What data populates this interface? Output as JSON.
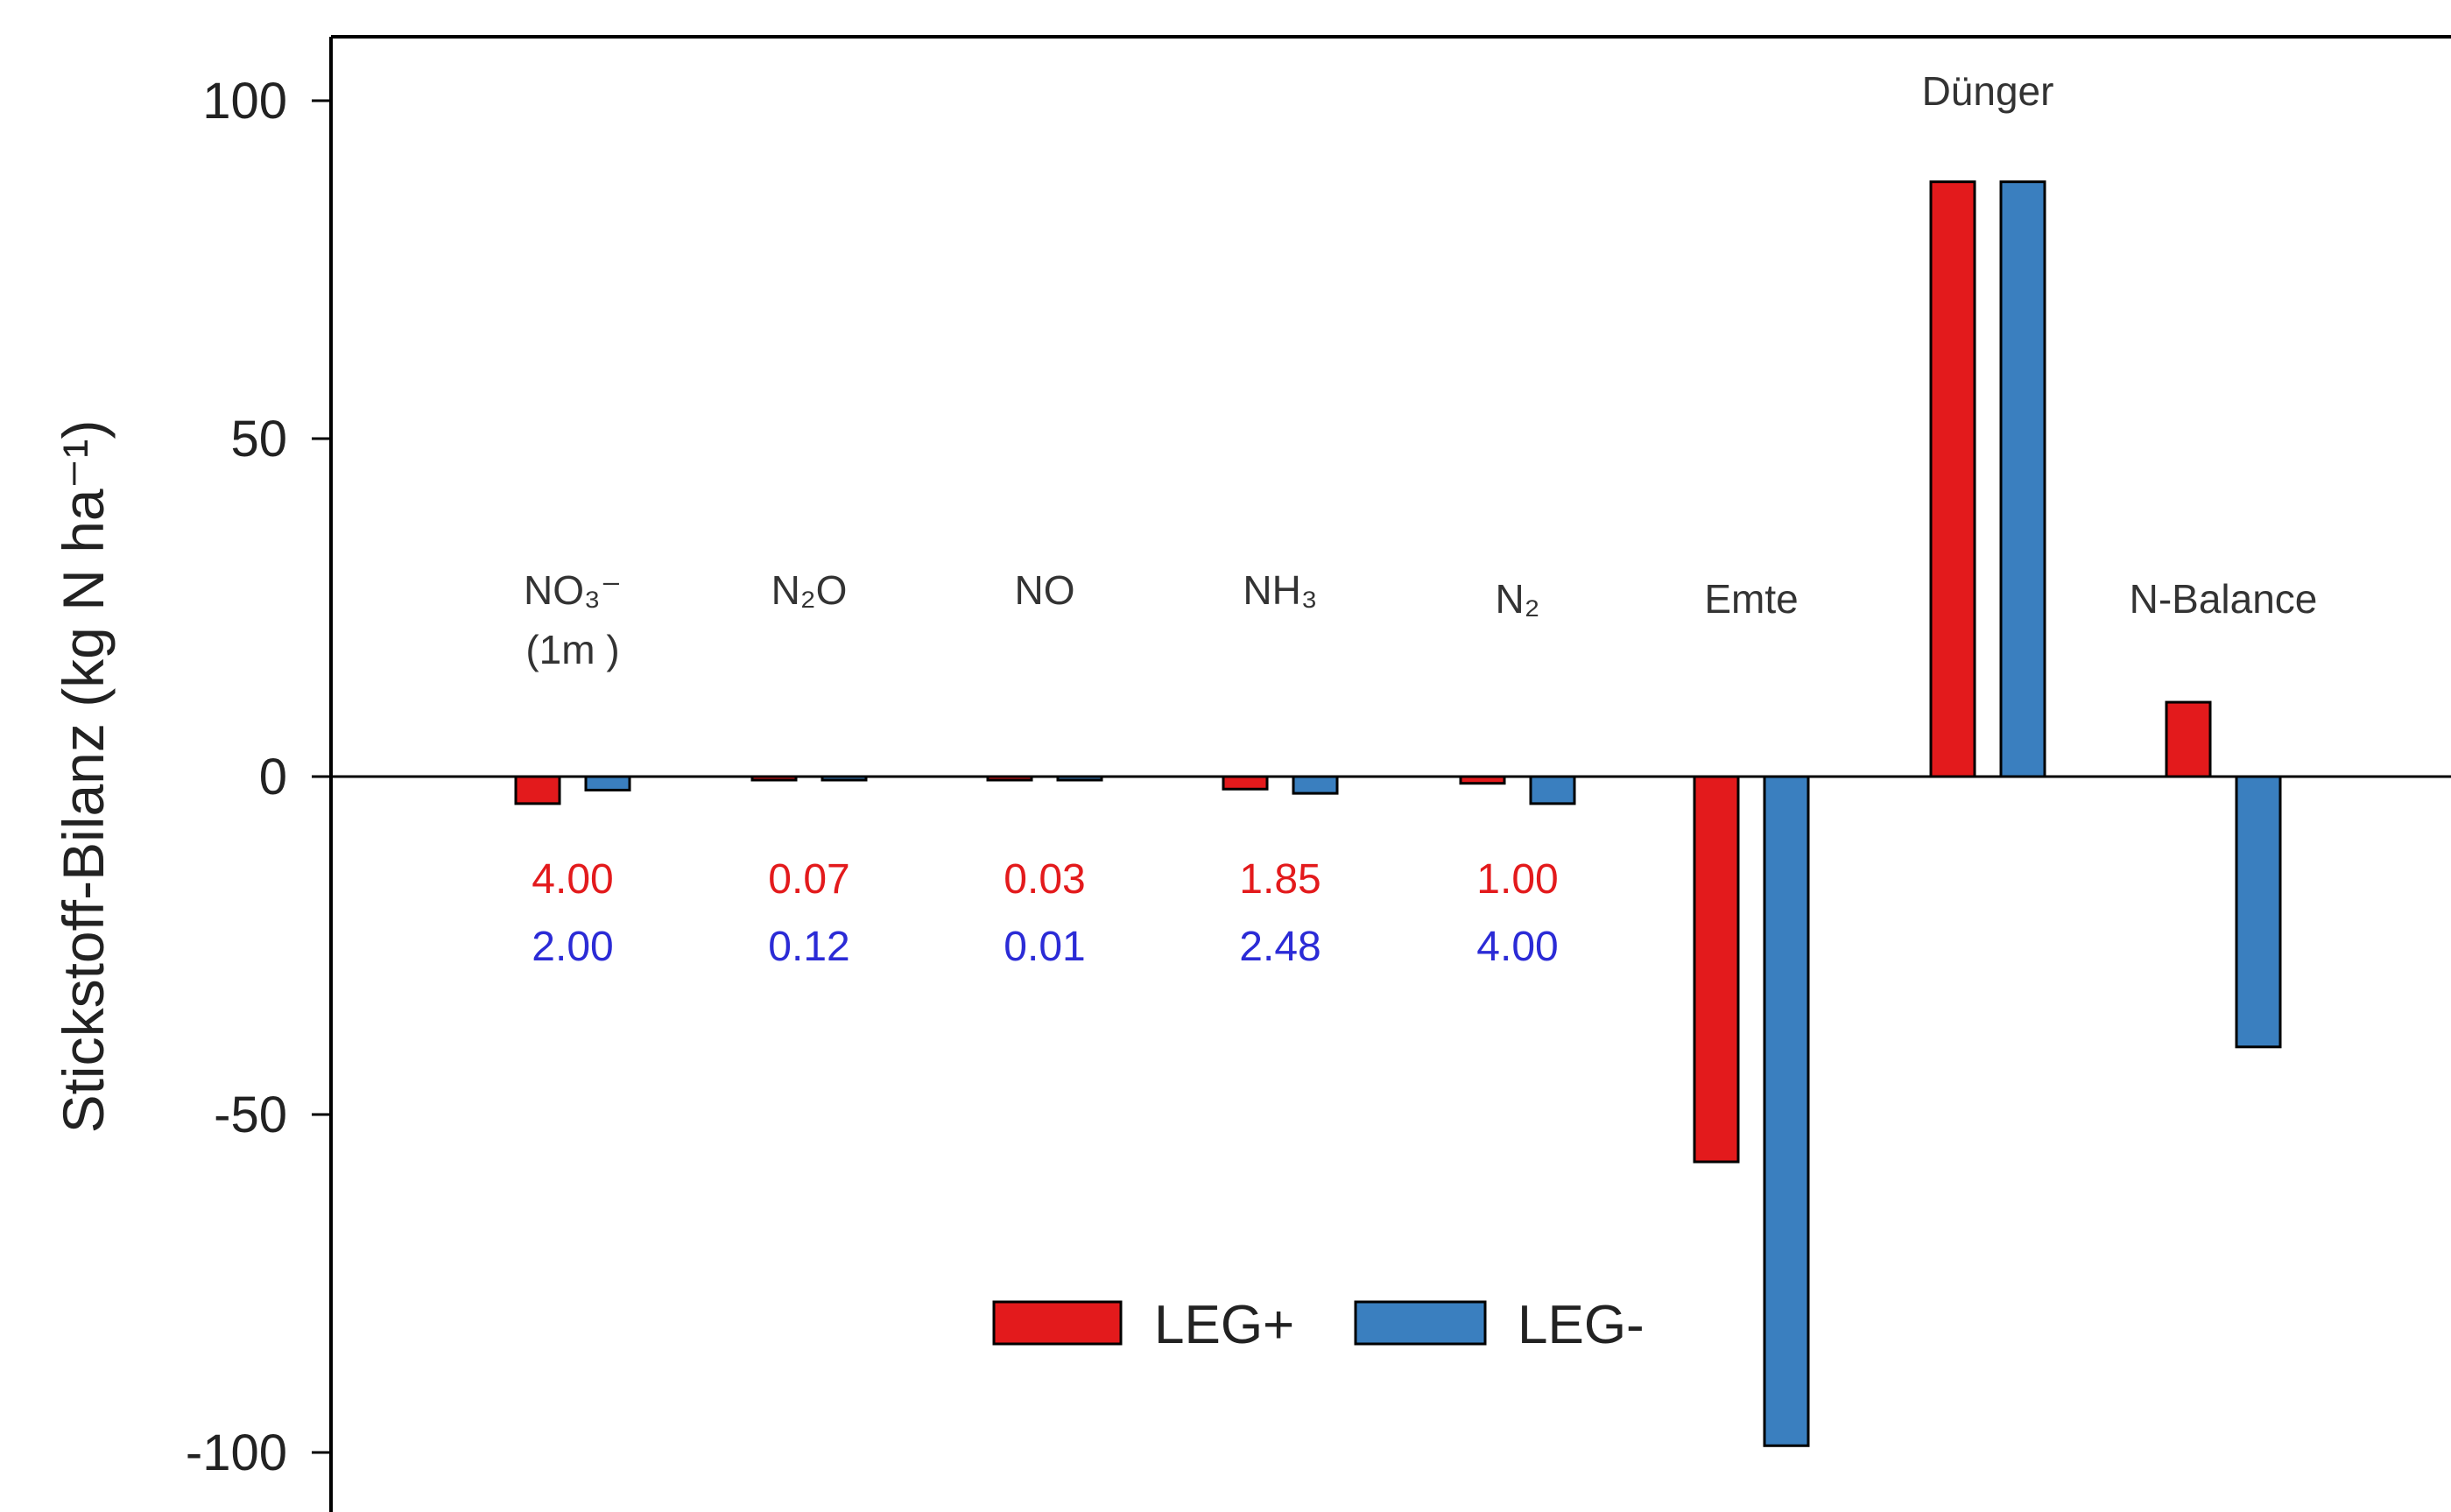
{
  "chart_data": {
    "type": "bar",
    "ylabel": "Stickstoff-Bilanz (kg N ha⁻¹)",
    "ylim": [
      -110,
      110
    ],
    "yticks": [
      100,
      50,
      0,
      -50,
      -100
    ],
    "grid": false,
    "legend_placement": "bottom-center",
    "categories": [
      {
        "label": "NO₃⁻",
        "sub": "(1m )"
      },
      {
        "label": "N₂O"
      },
      {
        "label": "NO"
      },
      {
        "label": "NH₃"
      },
      {
        "label": "N₂"
      },
      {
        "label": "Emte"
      },
      {
        "label": "Dünger"
      },
      {
        "label": "N-Balance"
      }
    ],
    "series": [
      {
        "name": "LEG+",
        "color": "#e31a1c",
        "values": [
          -4.0,
          -0.07,
          -0.03,
          -1.85,
          -1.0,
          -57,
          88,
          11
        ],
        "value_labels": [
          "4.00",
          "0.07",
          "0.03",
          "1.85",
          "1.00"
        ],
        "label_color": "#e31a1c"
      },
      {
        "name": "LEG-",
        "color": "#3a7fbf",
        "values": [
          -2.0,
          -0.12,
          -0.01,
          -2.48,
          -4.0,
          -99,
          88,
          -40
        ],
        "value_labels": [
          "2.00",
          "0.12",
          "0.01",
          "2.48",
          "4.00"
        ],
        "label_color": "#2b2bd6"
      }
    ]
  }
}
